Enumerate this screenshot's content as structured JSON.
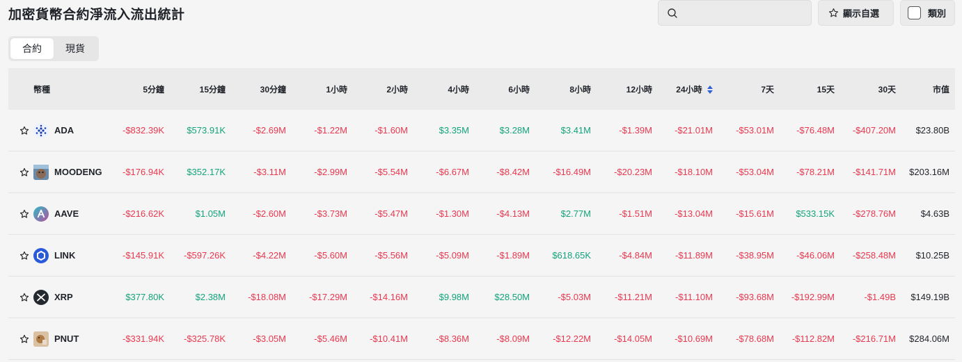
{
  "page": {
    "title": "加密貨幣合約淨流入流出統計"
  },
  "search": {
    "placeholder": "",
    "value": ""
  },
  "toolbar": {
    "favorites_label": "顯示自選",
    "category_label": "類別"
  },
  "tabs": [
    {
      "label": "合約",
      "active": true
    },
    {
      "label": "現貨",
      "active": false
    }
  ],
  "colors": {
    "negative": "#e8384f",
    "positive": "#13a37a",
    "sort_active": "#2f5fd6"
  },
  "table": {
    "headers": [
      "幣種",
      "5分鐘",
      "15分鐘",
      "30分鐘",
      "1小時",
      "2小時",
      "4小時",
      "6小時",
      "8小時",
      "12小時",
      "24小時",
      "7天",
      "15天",
      "30天",
      "市值"
    ],
    "sorted_column": "24小時",
    "rows": [
      {
        "symbol": "ADA",
        "icon": "ada-icon",
        "values": [
          "-$832.39K",
          "$573.91K",
          "-$2.69M",
          "-$1.22M",
          "-$1.60M",
          "$3.35M",
          "$3.28M",
          "$3.41M",
          "-$1.39M",
          "-$21.01M",
          "-$53.01M",
          "-$76.48M",
          "-$407.20M"
        ],
        "market_cap": "$23.80B"
      },
      {
        "symbol": "MOODENG",
        "icon": "moodeng-icon",
        "values": [
          "-$176.94K",
          "$352.17K",
          "-$3.11M",
          "-$2.99M",
          "-$5.54M",
          "-$6.67M",
          "-$8.42M",
          "-$16.49M",
          "-$20.23M",
          "-$18.10M",
          "-$53.04M",
          "-$78.21M",
          "-$141.71M"
        ],
        "market_cap": "$203.16M"
      },
      {
        "symbol": "AAVE",
        "icon": "aave-icon",
        "values": [
          "-$216.62K",
          "$1.05M",
          "-$2.60M",
          "-$3.73M",
          "-$5.47M",
          "-$1.30M",
          "-$4.13M",
          "$2.77M",
          "-$1.51M",
          "-$13.04M",
          "-$15.61M",
          "$533.15K",
          "-$278.76M"
        ],
        "market_cap": "$4.63B"
      },
      {
        "symbol": "LINK",
        "icon": "link-icon",
        "values": [
          "-$145.91K",
          "-$597.26K",
          "-$4.22M",
          "-$5.60M",
          "-$5.56M",
          "-$5.09M",
          "-$1.89M",
          "$618.65K",
          "-$4.84M",
          "-$11.89M",
          "-$38.95M",
          "-$46.06M",
          "-$258.48M"
        ],
        "market_cap": "$10.25B"
      },
      {
        "symbol": "XRP",
        "icon": "xrp-icon",
        "values": [
          "$377.80K",
          "$2.38M",
          "-$18.08M",
          "-$17.29M",
          "-$14.16M",
          "$9.98M",
          "$28.50M",
          "-$5.03M",
          "-$11.21M",
          "-$11.10M",
          "-$93.68M",
          "-$192.99M",
          "-$1.49B"
        ],
        "market_cap": "$149.19B"
      },
      {
        "symbol": "PNUT",
        "icon": "pnut-icon",
        "values": [
          "-$331.94K",
          "-$325.78K",
          "-$3.05M",
          "-$5.46M",
          "-$10.41M",
          "-$8.36M",
          "-$8.09M",
          "-$12.22M",
          "-$14.05M",
          "-$10.69M",
          "-$78.68M",
          "-$112.82M",
          "-$216.71M"
        ],
        "market_cap": "$284.06M"
      }
    ]
  }
}
